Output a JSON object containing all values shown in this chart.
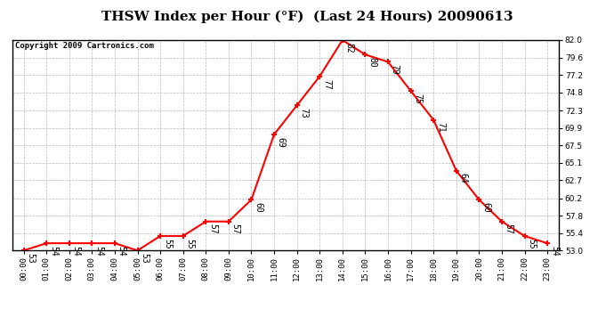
{
  "title": "THSW Index per Hour (°F)  (Last 24 Hours) 20090613",
  "copyright": "Copyright 2009 Cartronics.com",
  "hours": [
    "00:00",
    "01:00",
    "02:00",
    "03:00",
    "04:00",
    "05:00",
    "06:00",
    "07:00",
    "08:00",
    "09:00",
    "10:00",
    "11:00",
    "12:00",
    "13:00",
    "14:00",
    "15:00",
    "16:00",
    "17:00",
    "18:00",
    "19:00",
    "20:00",
    "21:00",
    "22:00",
    "23:00"
  ],
  "values": [
    53,
    54,
    54,
    54,
    54,
    53,
    55,
    55,
    57,
    57,
    60,
    69,
    73,
    77,
    82,
    80,
    79,
    75,
    71,
    64,
    60,
    57,
    55,
    54
  ],
  "ylim": [
    53.0,
    82.0
  ],
  "yticks": [
    53.0,
    55.4,
    57.8,
    60.2,
    62.7,
    65.1,
    67.5,
    69.9,
    72.3,
    74.8,
    77.2,
    79.6,
    82.0
  ],
  "line_color": "#ff0000",
  "marker_color": "#ff0000",
  "bg_color": "#ffffff",
  "plot_bg_color": "#ffffff",
  "grid_color": "#888888",
  "title_fontsize": 11,
  "copyright_fontsize": 6.5,
  "label_fontsize": 7,
  "tick_fontsize": 6.5
}
